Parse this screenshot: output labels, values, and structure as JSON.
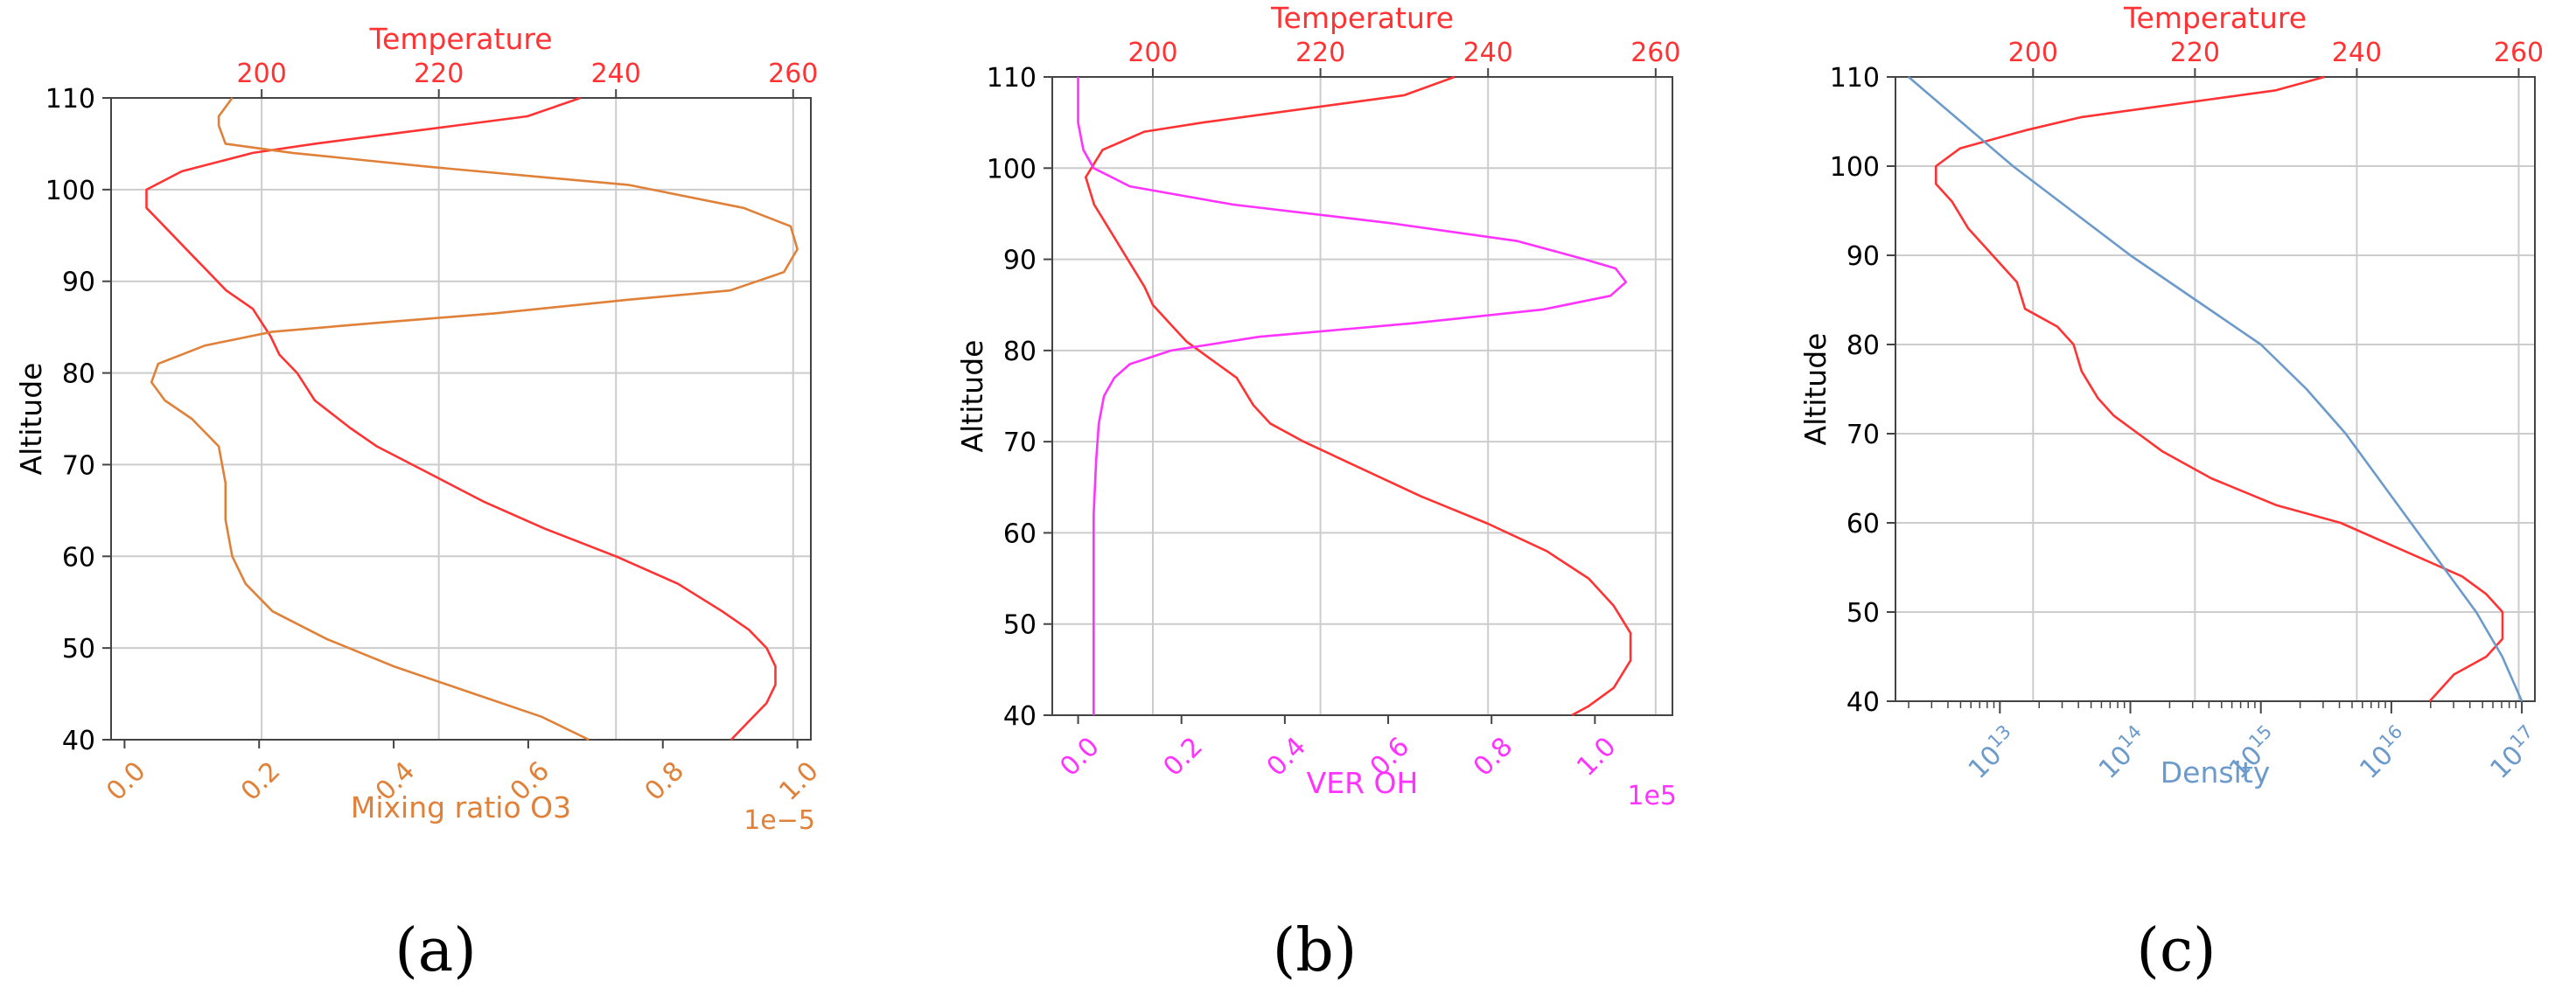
{
  "colors": {
    "temperature": "#ff3333",
    "o3": "#e0813a",
    "ver_oh": "#ff33ff",
    "density": "#6b9acb",
    "grid": "#cccccc",
    "axis": "#444444"
  },
  "chart_data": [
    {
      "type": "line",
      "panel_label": "(a)",
      "ylabel": "Altitude",
      "ylim": [
        40,
        110
      ],
      "yticks": [
        40,
        50,
        60,
        70,
        80,
        90,
        100,
        110
      ],
      "top_axis": {
        "label": "Temperature",
        "lim": [
          183,
          262
        ],
        "ticks": [
          200,
          220,
          240,
          260
        ]
      },
      "bottom_axis": {
        "label": "Mixing ratio O3",
        "lim": [
          -0.02,
          1.02
        ],
        "ticks": [
          0.0,
          0.2,
          0.4,
          0.6,
          0.8,
          1.0
        ],
        "tick_labels": [
          "0.0",
          "0.2",
          "0.4",
          "0.6",
          "0.8",
          "1.0"
        ],
        "offset_text": "1e−5",
        "scale": "linear"
      },
      "series": [
        {
          "name": "Temperature",
          "axis": "top",
          "color_key": "temperature",
          "x": [
            236,
            230,
            222,
            214,
            206,
            199,
            191,
            187,
            187,
            189,
            192,
            194,
            196,
            199,
            201,
            202,
            204,
            206,
            210,
            213,
            219,
            225,
            232,
            240,
            247,
            252,
            255,
            257,
            258,
            258,
            257,
            255,
            253
          ],
          "y": [
            110,
            108,
            107,
            106,
            105,
            104,
            102,
            100,
            98,
            96,
            93,
            91,
            89,
            87,
            84,
            82,
            80,
            77,
            74,
            72,
            69,
            66,
            63,
            60,
            57,
            54,
            52,
            50,
            48,
            46,
            44,
            42,
            40
          ]
        },
        {
          "name": "Mixing ratio O3",
          "axis": "bottom",
          "color_key": "o3",
          "x": [
            0.16,
            0.14,
            0.14,
            0.15,
            0.25,
            0.45,
            0.75,
            0.92,
            0.99,
            1.0,
            0.98,
            0.9,
            0.75,
            0.55,
            0.38,
            0.22,
            0.12,
            0.05,
            0.04,
            0.06,
            0.1,
            0.14,
            0.15,
            0.15,
            0.16,
            0.18,
            0.22,
            0.3,
            0.4,
            0.52,
            0.62,
            0.69
          ],
          "y": [
            110,
            108,
            107,
            105,
            104,
            102.5,
            100.5,
            98,
            96,
            93.5,
            91,
            89,
            88,
            86.5,
            85.5,
            84.5,
            83,
            81,
            79,
            77,
            75,
            72,
            68,
            64,
            60,
            57,
            54,
            51,
            48,
            45,
            42.5,
            40
          ]
        }
      ]
    },
    {
      "type": "line",
      "panel_label": "(b)",
      "ylabel": "Altitude",
      "ylim": [
        40,
        110
      ],
      "yticks": [
        40,
        50,
        60,
        70,
        80,
        90,
        100,
        110
      ],
      "top_axis": {
        "label": "Temperature",
        "lim": [
          188,
          262
        ],
        "ticks": [
          200,
          220,
          240,
          260
        ]
      },
      "bottom_axis": {
        "label": "VER OH",
        "lim": [
          -0.05,
          1.15
        ],
        "ticks": [
          0.0,
          0.2,
          0.4,
          0.6,
          0.8,
          1.0
        ],
        "tick_labels": [
          "0.0",
          "0.2",
          "0.4",
          "0.6",
          "0.8",
          "1.0"
        ],
        "offset_text": "1e5",
        "scale": "linear"
      },
      "series": [
        {
          "name": "Temperature",
          "axis": "top",
          "color_key": "temperature",
          "x": [
            236,
            230,
            222,
            214,
            206,
            199,
            194,
            192,
            193,
            195,
            197,
            199,
            200,
            202,
            204,
            207,
            210,
            212,
            214,
            218,
            225,
            232,
            240,
            247,
            252,
            255,
            257,
            257,
            255,
            252,
            250
          ],
          "y": [
            110,
            108,
            107,
            106,
            105,
            104,
            102,
            99,
            96,
            93,
            90,
            87,
            85,
            83,
            81,
            79,
            77,
            74,
            72,
            70,
            67,
            64,
            61,
            58,
            55,
            52,
            49,
            46,
            43,
            41,
            40
          ]
        },
        {
          "name": "VER OH",
          "axis": "bottom",
          "color_key": "ver_oh",
          "x": [
            0.0,
            0.0,
            0.01,
            0.03,
            0.1,
            0.3,
            0.6,
            0.85,
            0.98,
            1.04,
            1.06,
            1.03,
            0.9,
            0.65,
            0.35,
            0.18,
            0.1,
            0.07,
            0.05,
            0.04,
            0.035,
            0.03,
            0.03,
            0.03,
            0.03
          ],
          "y": [
            110,
            105,
            102,
            100,
            98,
            96,
            94,
            92,
            90,
            89,
            87.5,
            86,
            84.5,
            83,
            81.5,
            80,
            78.5,
            77,
            75,
            72,
            68,
            62,
            55,
            48,
            40
          ]
        }
      ]
    },
    {
      "type": "line",
      "panel_label": "(c)",
      "ylabel": "Altitude",
      "ylim": [
        40,
        110
      ],
      "yticks": [
        40,
        50,
        60,
        70,
        80,
        90,
        100,
        110
      ],
      "top_axis": {
        "label": "Temperature",
        "lim": [
          183,
          262
        ],
        "ticks": [
          200,
          220,
          240,
          260
        ]
      },
      "bottom_axis": {
        "label": "Density",
        "lim_log10": [
          12.2,
          17.1
        ],
        "tick_exponents": [
          13,
          14,
          15,
          16,
          17
        ],
        "tick_base": "10",
        "scale": "log"
      },
      "series": [
        {
          "name": "Temperature",
          "axis": "top",
          "color_key": "temperature",
          "x": [
            236,
            230,
            222,
            214,
            206,
            199,
            191,
            188,
            188,
            190,
            192,
            194,
            196,
            198,
            199,
            203,
            205,
            206,
            208,
            210,
            213,
            216,
            222,
            230,
            238,
            243,
            248,
            253,
            256,
            258,
            258,
            256,
            252,
            249
          ],
          "y": [
            110,
            108.5,
            107.5,
            106.5,
            105.5,
            104,
            102,
            100,
            98,
            96,
            93,
            91,
            89,
            87,
            84,
            82,
            80,
            77,
            74,
            72,
            70,
            68,
            65,
            62,
            60,
            58,
            56,
            54,
            52,
            50,
            47,
            45,
            43,
            40
          ]
        },
        {
          "name": "Density",
          "axis": "bottom",
          "color_key": "density",
          "log10_x": [
            12.3,
            12.7,
            13.1,
            13.55,
            14.0,
            14.5,
            15.0,
            15.35,
            15.65,
            15.9,
            16.15,
            16.4,
            16.65,
            16.85,
            17.0
          ],
          "y": [
            110,
            105,
            100,
            95,
            90,
            85,
            80,
            75,
            70,
            65,
            60,
            55,
            50,
            45,
            40
          ]
        }
      ]
    }
  ]
}
